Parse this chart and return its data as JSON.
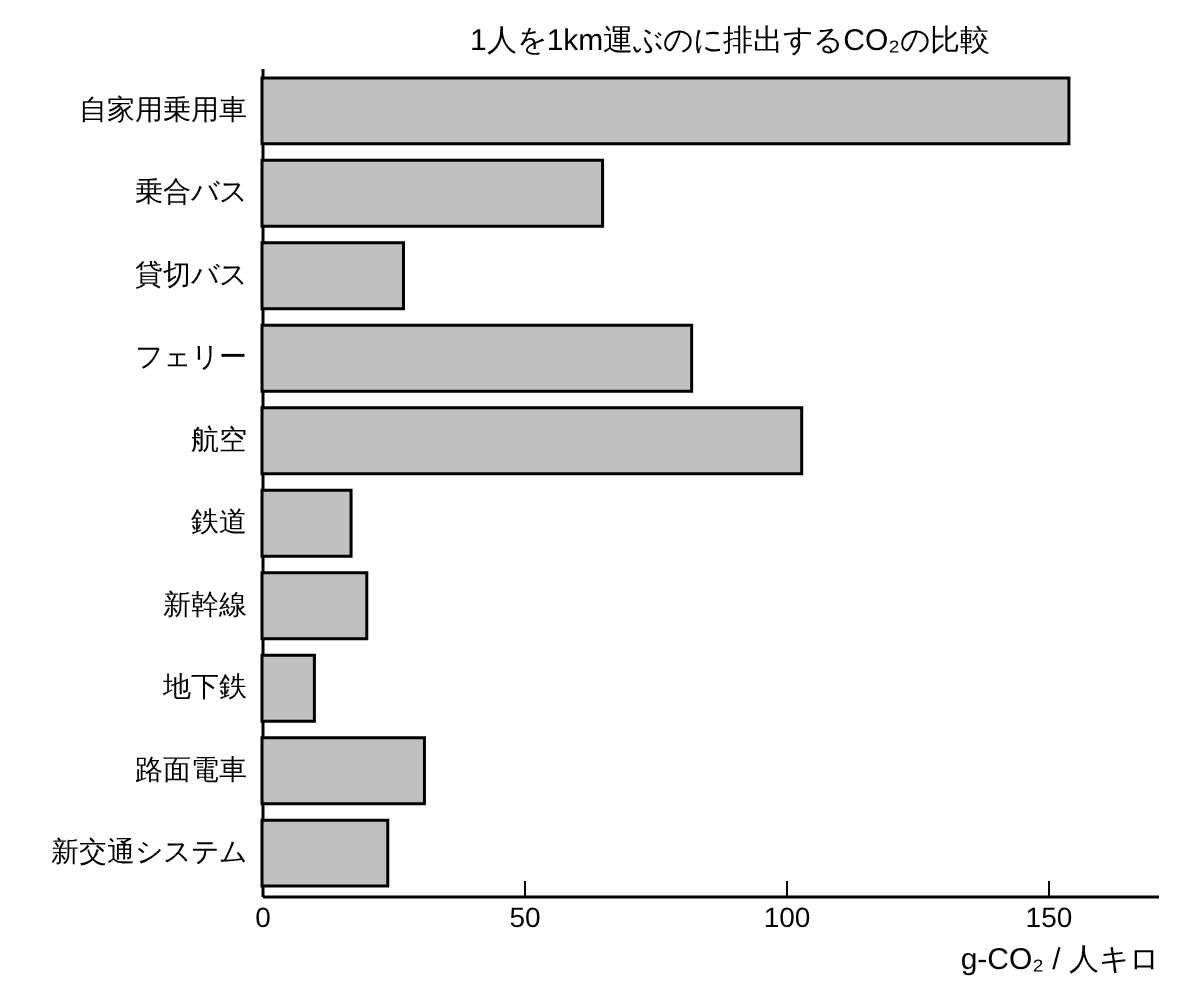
{
  "chart_data": {
    "type": "bar",
    "orientation": "horizontal",
    "title": "1人を1km運ぶのに排出するCO₂の比較",
    "xlabel": "g-CO₂ / 人キロ",
    "categories": [
      "自家用乗用車",
      "乗合バス",
      "貸切バス",
      "フェリー",
      "航空",
      "鉄道",
      "新幹線",
      "地下鉄",
      "路面電車",
      "新交通システム"
    ],
    "values": [
      154,
      65,
      27,
      82,
      103,
      17,
      20,
      10,
      31,
      24
    ],
    "color": "#c0c0c0",
    "xlim": [
      0,
      171
    ],
    "xticks": [
      0,
      50,
      100,
      150
    ],
    "grid": false
  }
}
